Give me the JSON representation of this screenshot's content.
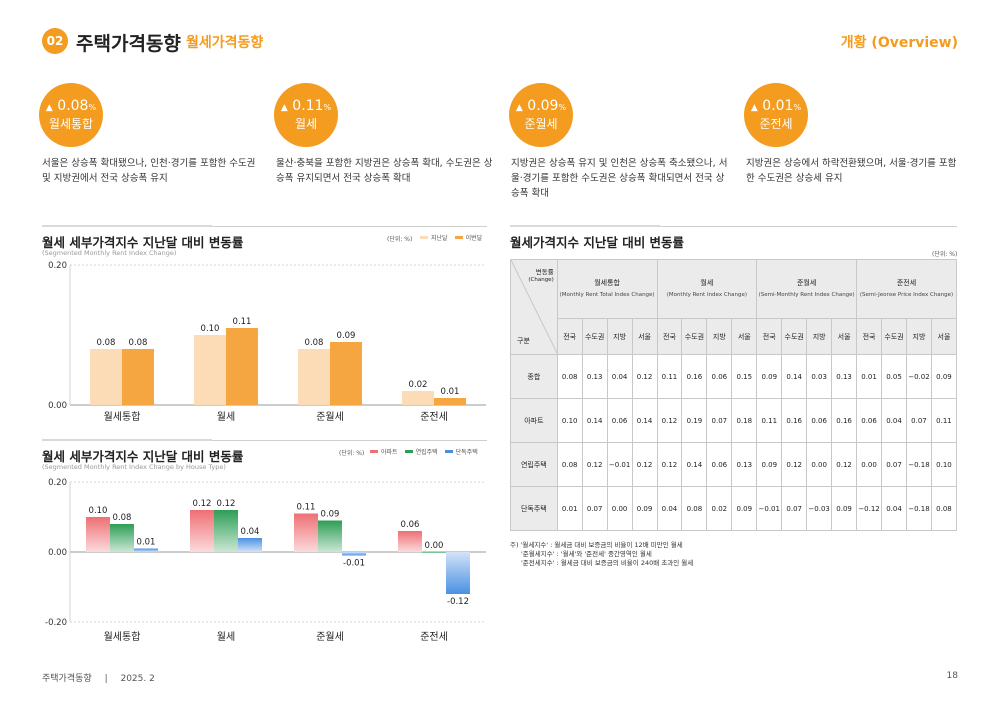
{
  "header": {
    "badge": "02",
    "title": "주택가격동향",
    "subtitle": "월세가격동향",
    "right": "개황 (Overview)"
  },
  "kpis": [
    {
      "arrow": "▲",
      "value": "0.08",
      "pct": "%",
      "label": "월세통합",
      "desc": "서울은 상승폭 확대됐으나, 인천·경기를 포함한 수도권 및 지방권에서 전국 상승폭 유지"
    },
    {
      "arrow": "▲",
      "value": "0.11",
      "pct": "%",
      "label": "월세",
      "desc": "울산·충북을 포함한 지방권은 상승폭 확대, 수도권은 상승폭 유지되면서 전국 상승폭 확대"
    },
    {
      "arrow": "▲",
      "value": "0.09",
      "pct": "%",
      "label": "준월세",
      "desc": "지방권은 상승폭 유지 및 인천은 상승폭 축소됐으나, 서울·경기를 포함한 수도권은 상승폭 확대되면서 전국 상승폭 확대"
    },
    {
      "arrow": "▲",
      "value": "0.01",
      "pct": "%",
      "label": "준전세",
      "desc": "지방권은 상승에서 하락전환됐으며, 서울·경기를 포함한 수도권은 상승세 유지"
    }
  ],
  "chart1": {
    "title": "월세 세부가격지수 지난달 대비 변동률",
    "subtitle": "(Segmented Monthly Rent Index Change)",
    "unit": "(단위: %)",
    "legend": [
      "지난달",
      "이번달"
    ]
  },
  "chart2": {
    "title": "월세 세부가격지수 지난달 대비 변동률",
    "subtitle": "(Segmented Monthly Rent Index Change by House Type)",
    "unit": "(단위: %)",
    "legend": [
      "아파트",
      "연립주택",
      "단독주택"
    ]
  },
  "chart_data": [
    {
      "type": "bar",
      "title": "월세 세부가격지수 지난달 대비 변동률",
      "categories": [
        "월세통합",
        "월세",
        "준월세",
        "준전세"
      ],
      "series": [
        {
          "name": "지난달",
          "values": [
            0.08,
            0.1,
            0.08,
            0.02
          ],
          "color": "#fbdcb6"
        },
        {
          "name": "이번달",
          "values": [
            0.08,
            0.11,
            0.09,
            0.01
          ],
          "color": "#f5a640"
        }
      ],
      "value_labels": [
        [
          "0.08",
          "0.10",
          "0.08",
          "0.02"
        ],
        [
          "0.08",
          "0.11",
          "0.09",
          "0.01"
        ]
      ],
      "yticks": [
        "0.00",
        "0.20"
      ],
      "ylim": [
        0,
        0.2
      ]
    },
    {
      "type": "bar",
      "title": "월세 세부가격지수 지난달 대비 변동률",
      "categories": [
        "월세통합",
        "월세",
        "준월세",
        "준전세"
      ],
      "series": [
        {
          "name": "아파트",
          "values": [
            0.1,
            0.12,
            0.11,
            0.06
          ],
          "color": "#ee6f74"
        },
        {
          "name": "연립주택",
          "values": [
            0.08,
            0.12,
            0.09,
            0.0
          ],
          "color": "#2e9e56"
        },
        {
          "name": "단독주택",
          "values": [
            0.01,
            0.04,
            -0.01,
            -0.12
          ],
          "color": "#4a90e2"
        }
      ],
      "value_labels": [
        [
          "0.10",
          "0.12",
          "0.11",
          "0.06"
        ],
        [
          "0.08",
          "0.12",
          "0.09",
          "0.00"
        ],
        [
          "0.01",
          "0.04",
          "-0.01",
          "-0.12"
        ]
      ],
      "yticks": [
        "-0.20",
        "0.00",
        "0.20"
      ],
      "ylim": [
        -0.2,
        0.2
      ]
    }
  ],
  "table": {
    "title": "월세가격지수 지난달 대비 변동률",
    "unit": "(단위: %)",
    "corner_top": "변동률",
    "corner_top_en": "(Change)",
    "corner_bottom": "구분",
    "groups": [
      {
        "name": "월세통합",
        "en": "(Monthly Rent Total Index Change)"
      },
      {
        "name": "월세",
        "en": "(Monthly Rent Index Change)"
      },
      {
        "name": "준월세",
        "en": "(Semi-Monthly Rent Index Change)"
      },
      {
        "name": "준전세",
        "en": "(Semi-Jeonse Price Index Change)"
      }
    ],
    "subcols": [
      "전국",
      "수도권",
      "지방",
      "서울"
    ],
    "rows": [
      {
        "label": "종합",
        "values": [
          "0.08",
          "0.13",
          "0.04",
          "0.12",
          "0.11",
          "0.16",
          "0.06",
          "0.15",
          "0.09",
          "0.14",
          "0.03",
          "0.13",
          "0.01",
          "0.05",
          "−0.02",
          "0.09"
        ]
      },
      {
        "label": "아파트",
        "values": [
          "0.10",
          "0.14",
          "0.06",
          "0.14",
          "0.12",
          "0.19",
          "0.07",
          "0.18",
          "0.11",
          "0.16",
          "0.06",
          "0.16",
          "0.06",
          "0.04",
          "0.07",
          "0.11"
        ]
      },
      {
        "label": "연립주택",
        "values": [
          "0.08",
          "0.12",
          "−0.01",
          "0.12",
          "0.12",
          "0.14",
          "0.06",
          "0.13",
          "0.09",
          "0.12",
          "0.00",
          "0.12",
          "0.00",
          "0.07",
          "−0.18",
          "0.10"
        ]
      },
      {
        "label": "단독주택",
        "values": [
          "0.01",
          "0.07",
          "0.00",
          "0.09",
          "0.04",
          "0.08",
          "0.02",
          "0.09",
          "−0.01",
          "0.07",
          "−0.03",
          "0.09",
          "−0.12",
          "0.04",
          "−0.18",
          "0.08"
        ]
      }
    ],
    "notes": [
      "주) '월세지수' : 월세금 대비 보증금의 비율이 12배 미만인 월세",
      "'준월세지수' : '월세'와 '준전세' 중간영역인 월세",
      "'준전세지수' : 월세금 대비 보증금의 비율이 240배 초과인 월세"
    ]
  },
  "footer": {
    "left": "주택가격동향",
    "sep": "|",
    "date": "2025. 2",
    "page": "18"
  }
}
